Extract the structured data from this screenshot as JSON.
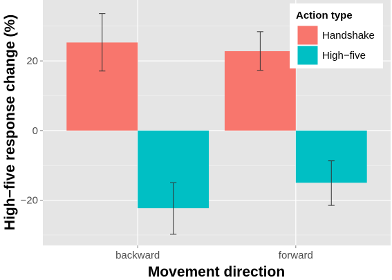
{
  "chart_data": {
    "type": "bar",
    "xlabel": "Movement direction",
    "ylabel": "High−five response change (%)",
    "categories": [
      "backward",
      "forward"
    ],
    "ylim": [
      -33,
      37.5
    ],
    "yticks": [
      -20,
      0,
      20
    ],
    "ytick_labels": [
      "−20",
      "0",
      "20"
    ],
    "grid": true,
    "legend": {
      "title": "Action type",
      "position": "top-right"
    },
    "series": [
      {
        "name": "Handshake",
        "color": "#F8766D",
        "values": [
          25.3,
          22.8
        ],
        "error": [
          [
            17.1,
            33.6
          ],
          [
            17.3,
            28.4
          ]
        ]
      },
      {
        "name": "High−five",
        "color": "#00BFC4",
        "values": [
          -22.3,
          -15.0
        ],
        "error": [
          [
            -29.8,
            -15.0
          ],
          [
            -21.5,
            -8.7
          ]
        ]
      }
    ]
  }
}
